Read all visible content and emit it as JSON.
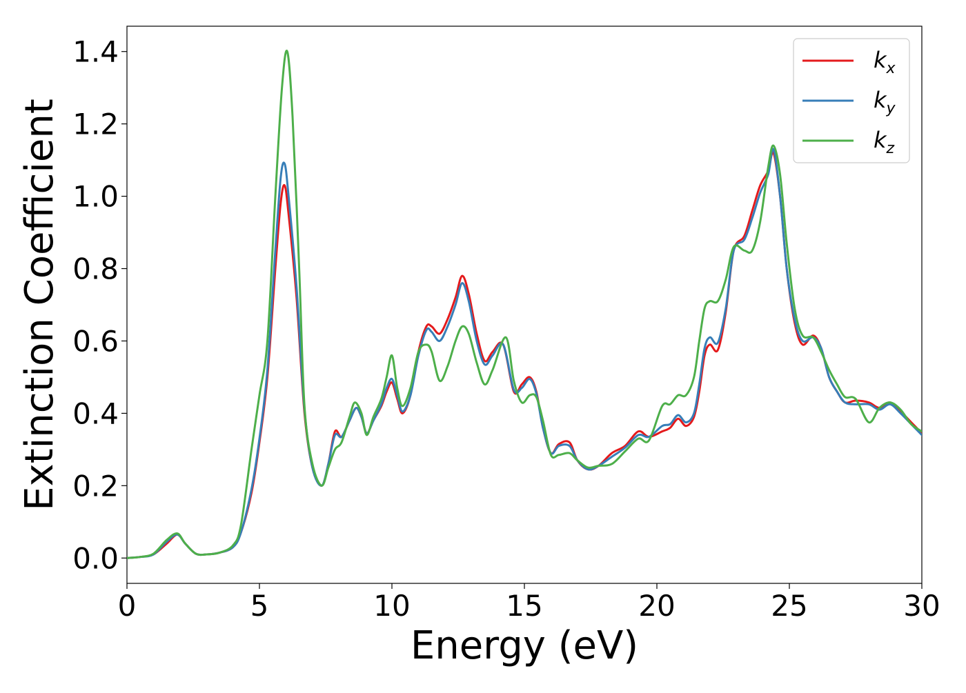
{
  "chart_data": {
    "type": "line",
    "title": "",
    "xlabel": "Energy (eV)",
    "ylabel": "Extinction Coefficient",
    "xlim": [
      0,
      30
    ],
    "ylim": [
      -0.07,
      1.47
    ],
    "xticks": [
      0,
      5,
      10,
      15,
      20,
      25,
      30
    ],
    "xtick_labels": [
      "0",
      "5",
      "10",
      "15",
      "20",
      "25",
      "30"
    ],
    "yticks": [
      0.0,
      0.2,
      0.4,
      0.6,
      0.8,
      1.0,
      1.2,
      1.4
    ],
    "ytick_labels": [
      "0.0",
      "0.2",
      "0.4",
      "0.6",
      "0.8",
      "1.0",
      "1.2",
      "1.4"
    ],
    "grid": false,
    "legend_position": "top-right",
    "series": [
      {
        "name": "k_x",
        "label_base": "k",
        "label_sub": "x",
        "color": "#e41a1c",
        "points": [
          [
            0,
            0.0
          ],
          [
            0.5,
            0.003
          ],
          [
            1.0,
            0.01
          ],
          [
            1.5,
            0.04
          ],
          [
            1.9,
            0.065
          ],
          [
            2.2,
            0.04
          ],
          [
            2.6,
            0.012
          ],
          [
            3.0,
            0.01
          ],
          [
            3.5,
            0.015
          ],
          [
            4.0,
            0.03
          ],
          [
            4.3,
            0.07
          ],
          [
            4.7,
            0.18
          ],
          [
            5.0,
            0.32
          ],
          [
            5.3,
            0.5
          ],
          [
            5.6,
            0.8
          ],
          [
            5.8,
            0.98
          ],
          [
            5.95,
            1.03
          ],
          [
            6.1,
            0.95
          ],
          [
            6.4,
            0.72
          ],
          [
            6.7,
            0.4
          ],
          [
            7.0,
            0.25
          ],
          [
            7.35,
            0.2
          ],
          [
            7.6,
            0.26
          ],
          [
            7.85,
            0.35
          ],
          [
            8.1,
            0.335
          ],
          [
            8.4,
            0.38
          ],
          [
            8.65,
            0.415
          ],
          [
            8.85,
            0.39
          ],
          [
            9.05,
            0.345
          ],
          [
            9.3,
            0.38
          ],
          [
            9.6,
            0.42
          ],
          [
            9.8,
            0.46
          ],
          [
            10.0,
            0.485
          ],
          [
            10.2,
            0.44
          ],
          [
            10.4,
            0.4
          ],
          [
            10.7,
            0.45
          ],
          [
            11.0,
            0.57
          ],
          [
            11.3,
            0.64
          ],
          [
            11.5,
            0.64
          ],
          [
            11.8,
            0.62
          ],
          [
            12.1,
            0.66
          ],
          [
            12.4,
            0.72
          ],
          [
            12.65,
            0.78
          ],
          [
            12.9,
            0.73
          ],
          [
            13.2,
            0.62
          ],
          [
            13.5,
            0.545
          ],
          [
            13.8,
            0.57
          ],
          [
            14.2,
            0.59
          ],
          [
            14.6,
            0.46
          ],
          [
            14.9,
            0.48
          ],
          [
            15.2,
            0.5
          ],
          [
            15.45,
            0.46
          ],
          [
            15.7,
            0.36
          ],
          [
            16.0,
            0.29
          ],
          [
            16.3,
            0.315
          ],
          [
            16.7,
            0.32
          ],
          [
            17.0,
            0.27
          ],
          [
            17.4,
            0.245
          ],
          [
            17.8,
            0.255
          ],
          [
            18.3,
            0.29
          ],
          [
            18.8,
            0.31
          ],
          [
            19.3,
            0.35
          ],
          [
            19.7,
            0.335
          ],
          [
            20.2,
            0.35
          ],
          [
            20.5,
            0.36
          ],
          [
            20.8,
            0.385
          ],
          [
            21.1,
            0.365
          ],
          [
            21.4,
            0.39
          ],
          [
            21.6,
            0.46
          ],
          [
            21.8,
            0.56
          ],
          [
            22.0,
            0.59
          ],
          [
            22.3,
            0.575
          ],
          [
            22.6,
            0.68
          ],
          [
            22.9,
            0.85
          ],
          [
            23.3,
            0.89
          ],
          [
            23.6,
            0.96
          ],
          [
            23.9,
            1.03
          ],
          [
            24.2,
            1.07
          ],
          [
            24.4,
            1.12
          ],
          [
            24.65,
            1.0
          ],
          [
            24.9,
            0.8
          ],
          [
            25.2,
            0.65
          ],
          [
            25.5,
            0.59
          ],
          [
            25.9,
            0.615
          ],
          [
            26.2,
            0.58
          ],
          [
            26.5,
            0.5
          ],
          [
            26.8,
            0.46
          ],
          [
            27.1,
            0.43
          ],
          [
            27.5,
            0.435
          ],
          [
            28.0,
            0.43
          ],
          [
            28.4,
            0.415
          ],
          [
            28.8,
            0.43
          ],
          [
            29.2,
            0.405
          ],
          [
            29.6,
            0.375
          ],
          [
            30.0,
            0.345
          ]
        ]
      },
      {
        "name": "k_y",
        "label_base": "k",
        "label_sub": "y",
        "color": "#377eb8",
        "points": [
          [
            0,
            0.0
          ],
          [
            0.5,
            0.003
          ],
          [
            1.0,
            0.01
          ],
          [
            1.5,
            0.045
          ],
          [
            1.9,
            0.065
          ],
          [
            2.2,
            0.04
          ],
          [
            2.6,
            0.012
          ],
          [
            3.0,
            0.01
          ],
          [
            3.5,
            0.015
          ],
          [
            4.0,
            0.03
          ],
          [
            4.3,
            0.07
          ],
          [
            4.7,
            0.19
          ],
          [
            5.0,
            0.33
          ],
          [
            5.3,
            0.52
          ],
          [
            5.6,
            0.85
          ],
          [
            5.8,
            1.05
          ],
          [
            5.95,
            1.09
          ],
          [
            6.1,
            1.0
          ],
          [
            6.4,
            0.75
          ],
          [
            6.7,
            0.41
          ],
          [
            7.0,
            0.25
          ],
          [
            7.35,
            0.2
          ],
          [
            7.6,
            0.26
          ],
          [
            7.85,
            0.34
          ],
          [
            8.1,
            0.335
          ],
          [
            8.4,
            0.38
          ],
          [
            8.65,
            0.415
          ],
          [
            8.85,
            0.39
          ],
          [
            9.05,
            0.345
          ],
          [
            9.3,
            0.38
          ],
          [
            9.6,
            0.425
          ],
          [
            9.8,
            0.47
          ],
          [
            10.0,
            0.495
          ],
          [
            10.2,
            0.45
          ],
          [
            10.4,
            0.405
          ],
          [
            10.7,
            0.45
          ],
          [
            11.0,
            0.56
          ],
          [
            11.3,
            0.63
          ],
          [
            11.5,
            0.625
          ],
          [
            11.8,
            0.6
          ],
          [
            12.1,
            0.64
          ],
          [
            12.4,
            0.7
          ],
          [
            12.65,
            0.76
          ],
          [
            12.9,
            0.71
          ],
          [
            13.2,
            0.6
          ],
          [
            13.5,
            0.535
          ],
          [
            13.8,
            0.56
          ],
          [
            14.2,
            0.59
          ],
          [
            14.6,
            0.465
          ],
          [
            14.9,
            0.47
          ],
          [
            15.2,
            0.495
          ],
          [
            15.45,
            0.455
          ],
          [
            15.7,
            0.36
          ],
          [
            16.0,
            0.29
          ],
          [
            16.3,
            0.31
          ],
          [
            16.7,
            0.31
          ],
          [
            17.0,
            0.27
          ],
          [
            17.4,
            0.245
          ],
          [
            17.8,
            0.255
          ],
          [
            18.3,
            0.28
          ],
          [
            18.8,
            0.305
          ],
          [
            19.3,
            0.34
          ],
          [
            19.7,
            0.335
          ],
          [
            20.2,
            0.365
          ],
          [
            20.5,
            0.37
          ],
          [
            20.8,
            0.395
          ],
          [
            21.1,
            0.375
          ],
          [
            21.4,
            0.4
          ],
          [
            21.6,
            0.48
          ],
          [
            21.8,
            0.58
          ],
          [
            22.0,
            0.61
          ],
          [
            22.3,
            0.595
          ],
          [
            22.6,
            0.69
          ],
          [
            22.9,
            0.85
          ],
          [
            23.3,
            0.88
          ],
          [
            23.6,
            0.94
          ],
          [
            23.9,
            1.01
          ],
          [
            24.2,
            1.06
          ],
          [
            24.4,
            1.13
          ],
          [
            24.65,
            1.0
          ],
          [
            24.9,
            0.8
          ],
          [
            25.2,
            0.66
          ],
          [
            25.5,
            0.6
          ],
          [
            25.9,
            0.61
          ],
          [
            26.2,
            0.58
          ],
          [
            26.5,
            0.5
          ],
          [
            26.8,
            0.46
          ],
          [
            27.1,
            0.43
          ],
          [
            27.5,
            0.425
          ],
          [
            28.0,
            0.425
          ],
          [
            28.4,
            0.41
          ],
          [
            28.8,
            0.425
          ],
          [
            29.2,
            0.4
          ],
          [
            29.6,
            0.37
          ],
          [
            30.0,
            0.34
          ]
        ]
      },
      {
        "name": "k_z",
        "label_base": "k",
        "label_sub": "z",
        "color": "#4daf4a",
        "points": [
          [
            0,
            0.0
          ],
          [
            0.5,
            0.003
          ],
          [
            1.0,
            0.012
          ],
          [
            1.5,
            0.05
          ],
          [
            1.9,
            0.068
          ],
          [
            2.2,
            0.04
          ],
          [
            2.6,
            0.012
          ],
          [
            3.0,
            0.01
          ],
          [
            3.5,
            0.015
          ],
          [
            4.0,
            0.035
          ],
          [
            4.3,
            0.09
          ],
          [
            4.7,
            0.3
          ],
          [
            5.0,
            0.45
          ],
          [
            5.3,
            0.6
          ],
          [
            5.6,
            1.0
          ],
          [
            5.85,
            1.3
          ],
          [
            6.05,
            1.4
          ],
          [
            6.25,
            1.22
          ],
          [
            6.5,
            0.8
          ],
          [
            6.7,
            0.42
          ],
          [
            7.0,
            0.26
          ],
          [
            7.35,
            0.2
          ],
          [
            7.6,
            0.25
          ],
          [
            7.85,
            0.3
          ],
          [
            8.1,
            0.32
          ],
          [
            8.4,
            0.39
          ],
          [
            8.6,
            0.43
          ],
          [
            8.85,
            0.4
          ],
          [
            9.05,
            0.34
          ],
          [
            9.3,
            0.39
          ],
          [
            9.6,
            0.44
          ],
          [
            9.8,
            0.5
          ],
          [
            10.0,
            0.56
          ],
          [
            10.2,
            0.47
          ],
          [
            10.4,
            0.42
          ],
          [
            10.7,
            0.47
          ],
          [
            11.0,
            0.57
          ],
          [
            11.3,
            0.59
          ],
          [
            11.5,
            0.57
          ],
          [
            11.8,
            0.49
          ],
          [
            12.1,
            0.53
          ],
          [
            12.4,
            0.6
          ],
          [
            12.65,
            0.64
          ],
          [
            12.9,
            0.62
          ],
          [
            13.2,
            0.54
          ],
          [
            13.5,
            0.48
          ],
          [
            13.8,
            0.52
          ],
          [
            14.3,
            0.61
          ],
          [
            14.6,
            0.49
          ],
          [
            14.9,
            0.43
          ],
          [
            15.2,
            0.45
          ],
          [
            15.45,
            0.445
          ],
          [
            15.7,
            0.38
          ],
          [
            16.0,
            0.285
          ],
          [
            16.3,
            0.285
          ],
          [
            16.7,
            0.29
          ],
          [
            17.0,
            0.27
          ],
          [
            17.4,
            0.25
          ],
          [
            17.8,
            0.255
          ],
          [
            18.3,
            0.26
          ],
          [
            18.8,
            0.295
          ],
          [
            19.3,
            0.33
          ],
          [
            19.7,
            0.325
          ],
          [
            20.2,
            0.42
          ],
          [
            20.5,
            0.425
          ],
          [
            20.8,
            0.45
          ],
          [
            21.1,
            0.45
          ],
          [
            21.4,
            0.5
          ],
          [
            21.6,
            0.6
          ],
          [
            21.8,
            0.69
          ],
          [
            22.0,
            0.71
          ],
          [
            22.3,
            0.71
          ],
          [
            22.6,
            0.77
          ],
          [
            22.9,
            0.86
          ],
          [
            23.3,
            0.85
          ],
          [
            23.6,
            0.85
          ],
          [
            23.9,
            0.93
          ],
          [
            24.2,
            1.08
          ],
          [
            24.4,
            1.14
          ],
          [
            24.65,
            1.06
          ],
          [
            24.9,
            0.87
          ],
          [
            25.2,
            0.69
          ],
          [
            25.5,
            0.615
          ],
          [
            25.9,
            0.61
          ],
          [
            26.2,
            0.57
          ],
          [
            26.5,
            0.52
          ],
          [
            26.8,
            0.48
          ],
          [
            27.1,
            0.445
          ],
          [
            27.5,
            0.44
          ],
          [
            28.0,
            0.375
          ],
          [
            28.4,
            0.415
          ],
          [
            28.8,
            0.43
          ],
          [
            29.2,
            0.41
          ],
          [
            29.6,
            0.37
          ],
          [
            30.0,
            0.35
          ]
        ]
      }
    ]
  }
}
